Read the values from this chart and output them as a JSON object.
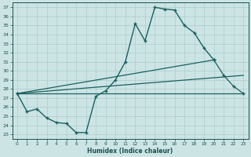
{
  "title": "",
  "xlabel": "Humidex (Indice chaleur)",
  "ylabel": "",
  "xlim": [
    -0.5,
    23.5
  ],
  "ylim": [
    22.5,
    37.5
  ],
  "xticks": [
    0,
    1,
    2,
    3,
    4,
    5,
    6,
    7,
    8,
    9,
    10,
    11,
    12,
    13,
    14,
    15,
    16,
    17,
    18,
    19,
    20,
    21,
    22,
    23
  ],
  "yticks": [
    23,
    24,
    25,
    26,
    27,
    28,
    29,
    30,
    31,
    32,
    33,
    34,
    35,
    36,
    37
  ],
  "background_color": "#cde4e4",
  "grid_color": "#aacece",
  "line_color": "#1a6060",
  "line1_x": [
    0,
    1,
    2,
    3,
    4,
    5,
    6,
    7,
    8,
    9,
    10,
    11,
    12,
    13,
    14,
    15,
    16,
    17,
    18,
    19,
    20
  ],
  "line1_y": [
    27.5,
    25.5,
    25.8,
    24.8,
    24.3,
    24.2,
    23.2,
    23.2,
    27.2,
    27.8,
    29.0,
    31.0,
    35.2,
    33.3,
    37.0,
    36.8,
    36.7,
    35.0,
    34.2,
    32.5,
    31.2
  ],
  "line2_x": [
    0,
    20,
    21,
    22,
    23
  ],
  "line2_y": [
    27.5,
    31.2,
    29.5,
    28.3,
    27.5
  ],
  "line3_x": [
    0,
    23
  ],
  "line3_y": [
    27.5,
    27.5
  ],
  "line4_x": [
    0,
    23
  ],
  "line4_y": [
    27.5,
    29.5
  ]
}
